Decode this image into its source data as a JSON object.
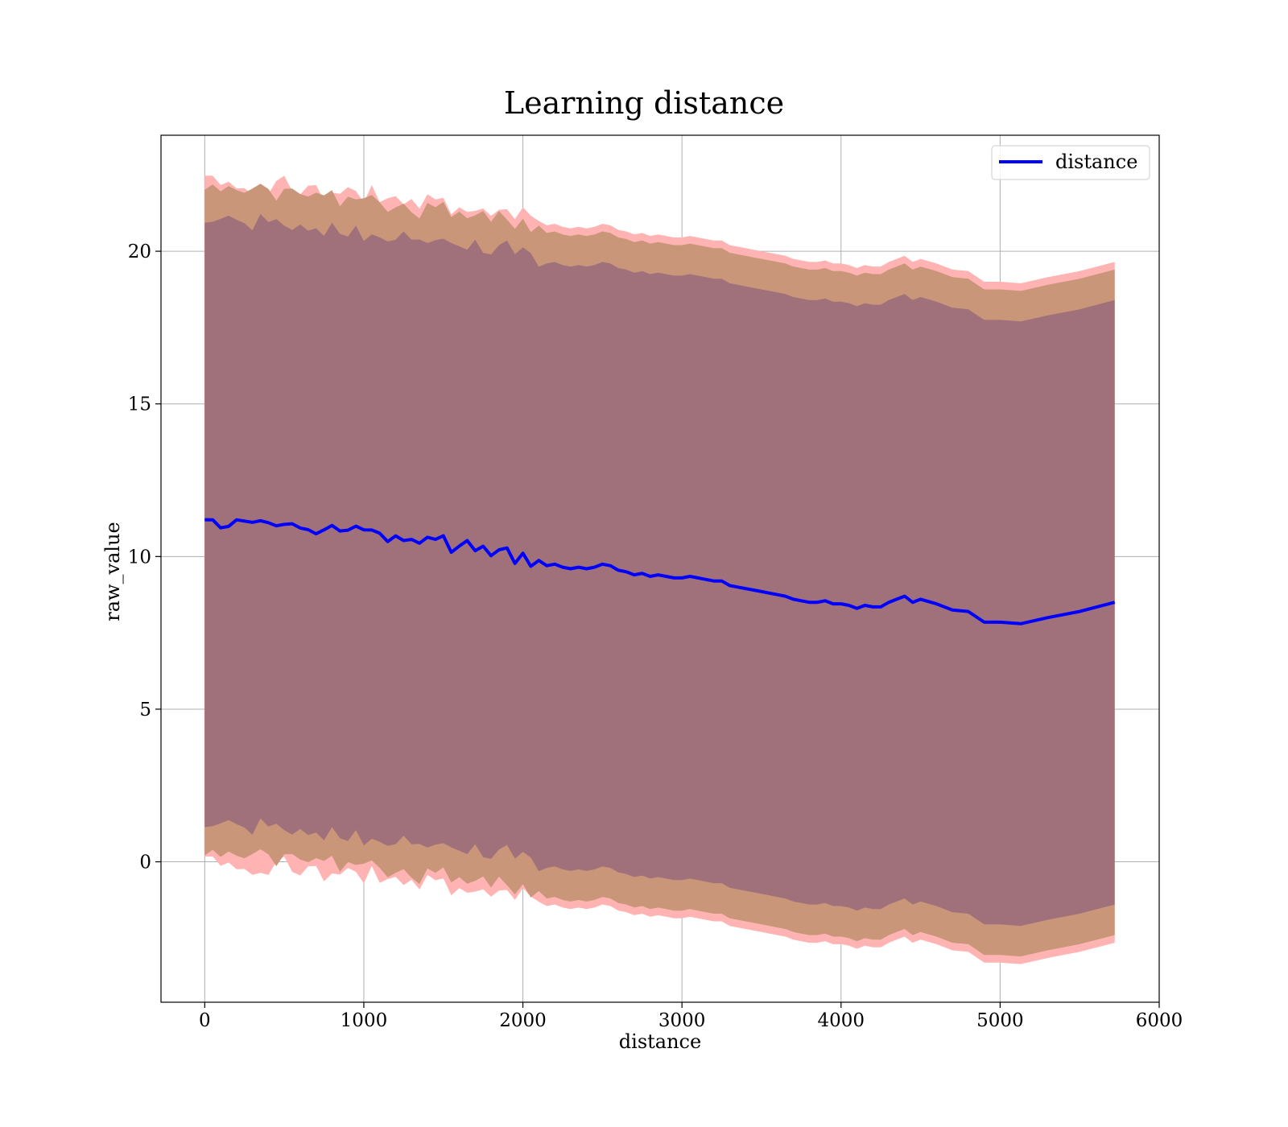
{
  "chart_data": {
    "type": "line",
    "title": "Learning distance",
    "xlabel": "distance",
    "ylabel": "raw_value",
    "xlim": [
      -275,
      6000
    ],
    "ylim": [
      -4.6,
      23.8
    ],
    "xticks": [
      0,
      1000,
      2000,
      3000,
      4000,
      5000,
      6000
    ],
    "yticks": [
      0,
      5,
      10,
      15,
      20
    ],
    "grid": true,
    "legend": {
      "placement": "top-right",
      "entries": [
        "distance"
      ]
    },
    "colors": {
      "line": "#0000ff",
      "band_outer": "#ffb3b3",
      "band_middle": "#c9967a",
      "band_inner": "#a1717b",
      "grid": "#b0b0b0"
    },
    "series": [
      {
        "name": "distance",
        "x": [
          0,
          50,
          100,
          150,
          200,
          250,
          300,
          350,
          400,
          450,
          500,
          550,
          600,
          650,
          700,
          750,
          800,
          850,
          900,
          950,
          1000,
          1050,
          1100,
          1150,
          1200,
          1250,
          1300,
          1350,
          1400,
          1450,
          1500,
          1550,
          1600,
          1650,
          1700,
          1750,
          1800,
          1850,
          1900,
          1950,
          2000,
          2050,
          2100,
          2150,
          2200,
          2250,
          2300,
          2350,
          2400,
          2450,
          2500,
          2550,
          2600,
          2650,
          2700,
          2750,
          2800,
          2850,
          2900,
          2950,
          3000,
          3050,
          3100,
          3150,
          3200,
          3250,
          3300,
          3350,
          3400,
          3450,
          3500,
          3550,
          3600,
          3650,
          3700,
          3750,
          3800,
          3850,
          3900,
          3950,
          4000,
          4050,
          4100,
          4150,
          4200,
          4250,
          4300,
          4350,
          4400,
          4450,
          4500,
          4600,
          4700,
          4800,
          4900,
          5000,
          5130,
          5300,
          5500,
          5720
        ],
        "y": [
          11.1,
          11.15,
          11.0,
          11.1,
          11.05,
          11.1,
          11.0,
          11.05,
          10.95,
          11.0,
          11.05,
          10.9,
          10.95,
          10.85,
          10.9,
          10.75,
          10.85,
          10.8,
          10.7,
          10.9,
          10.7,
          10.75,
          10.7,
          10.6,
          10.55,
          10.5,
          10.45,
          10.4,
          10.5,
          10.45,
          10.55,
          10.3,
          10.4,
          10.35,
          10.3,
          10.2,
          10.05,
          10.3,
          10.25,
          9.85,
          10.1,
          9.8,
          9.75,
          9.7,
          9.75,
          9.65,
          9.6,
          9.65,
          9.6,
          9.65,
          9.75,
          9.7,
          9.55,
          9.5,
          9.4,
          9.45,
          9.35,
          9.4,
          9.35,
          9.3,
          9.3,
          9.35,
          9.3,
          9.25,
          9.2,
          9.2,
          9.05,
          9.0,
          8.95,
          8.9,
          8.85,
          8.8,
          8.75,
          8.7,
          8.6,
          8.55,
          8.5,
          8.5,
          8.55,
          8.45,
          8.45,
          8.4,
          8.3,
          8.4,
          8.35,
          8.35,
          8.5,
          8.6,
          8.7,
          8.5,
          8.6,
          8.45,
          8.25,
          8.2,
          7.85,
          7.85,
          7.8,
          8.0,
          8.2,
          8.5
        ],
        "band_outer": {
          "lower_offset": -11.15,
          "upper_offset": 11.15
        },
        "band_middle": {
          "lower_offset": -10.9,
          "upper_offset": 10.9
        },
        "band_inner": {
          "lower_offset": -9.9,
          "upper_offset": 9.9
        }
      }
    ]
  }
}
